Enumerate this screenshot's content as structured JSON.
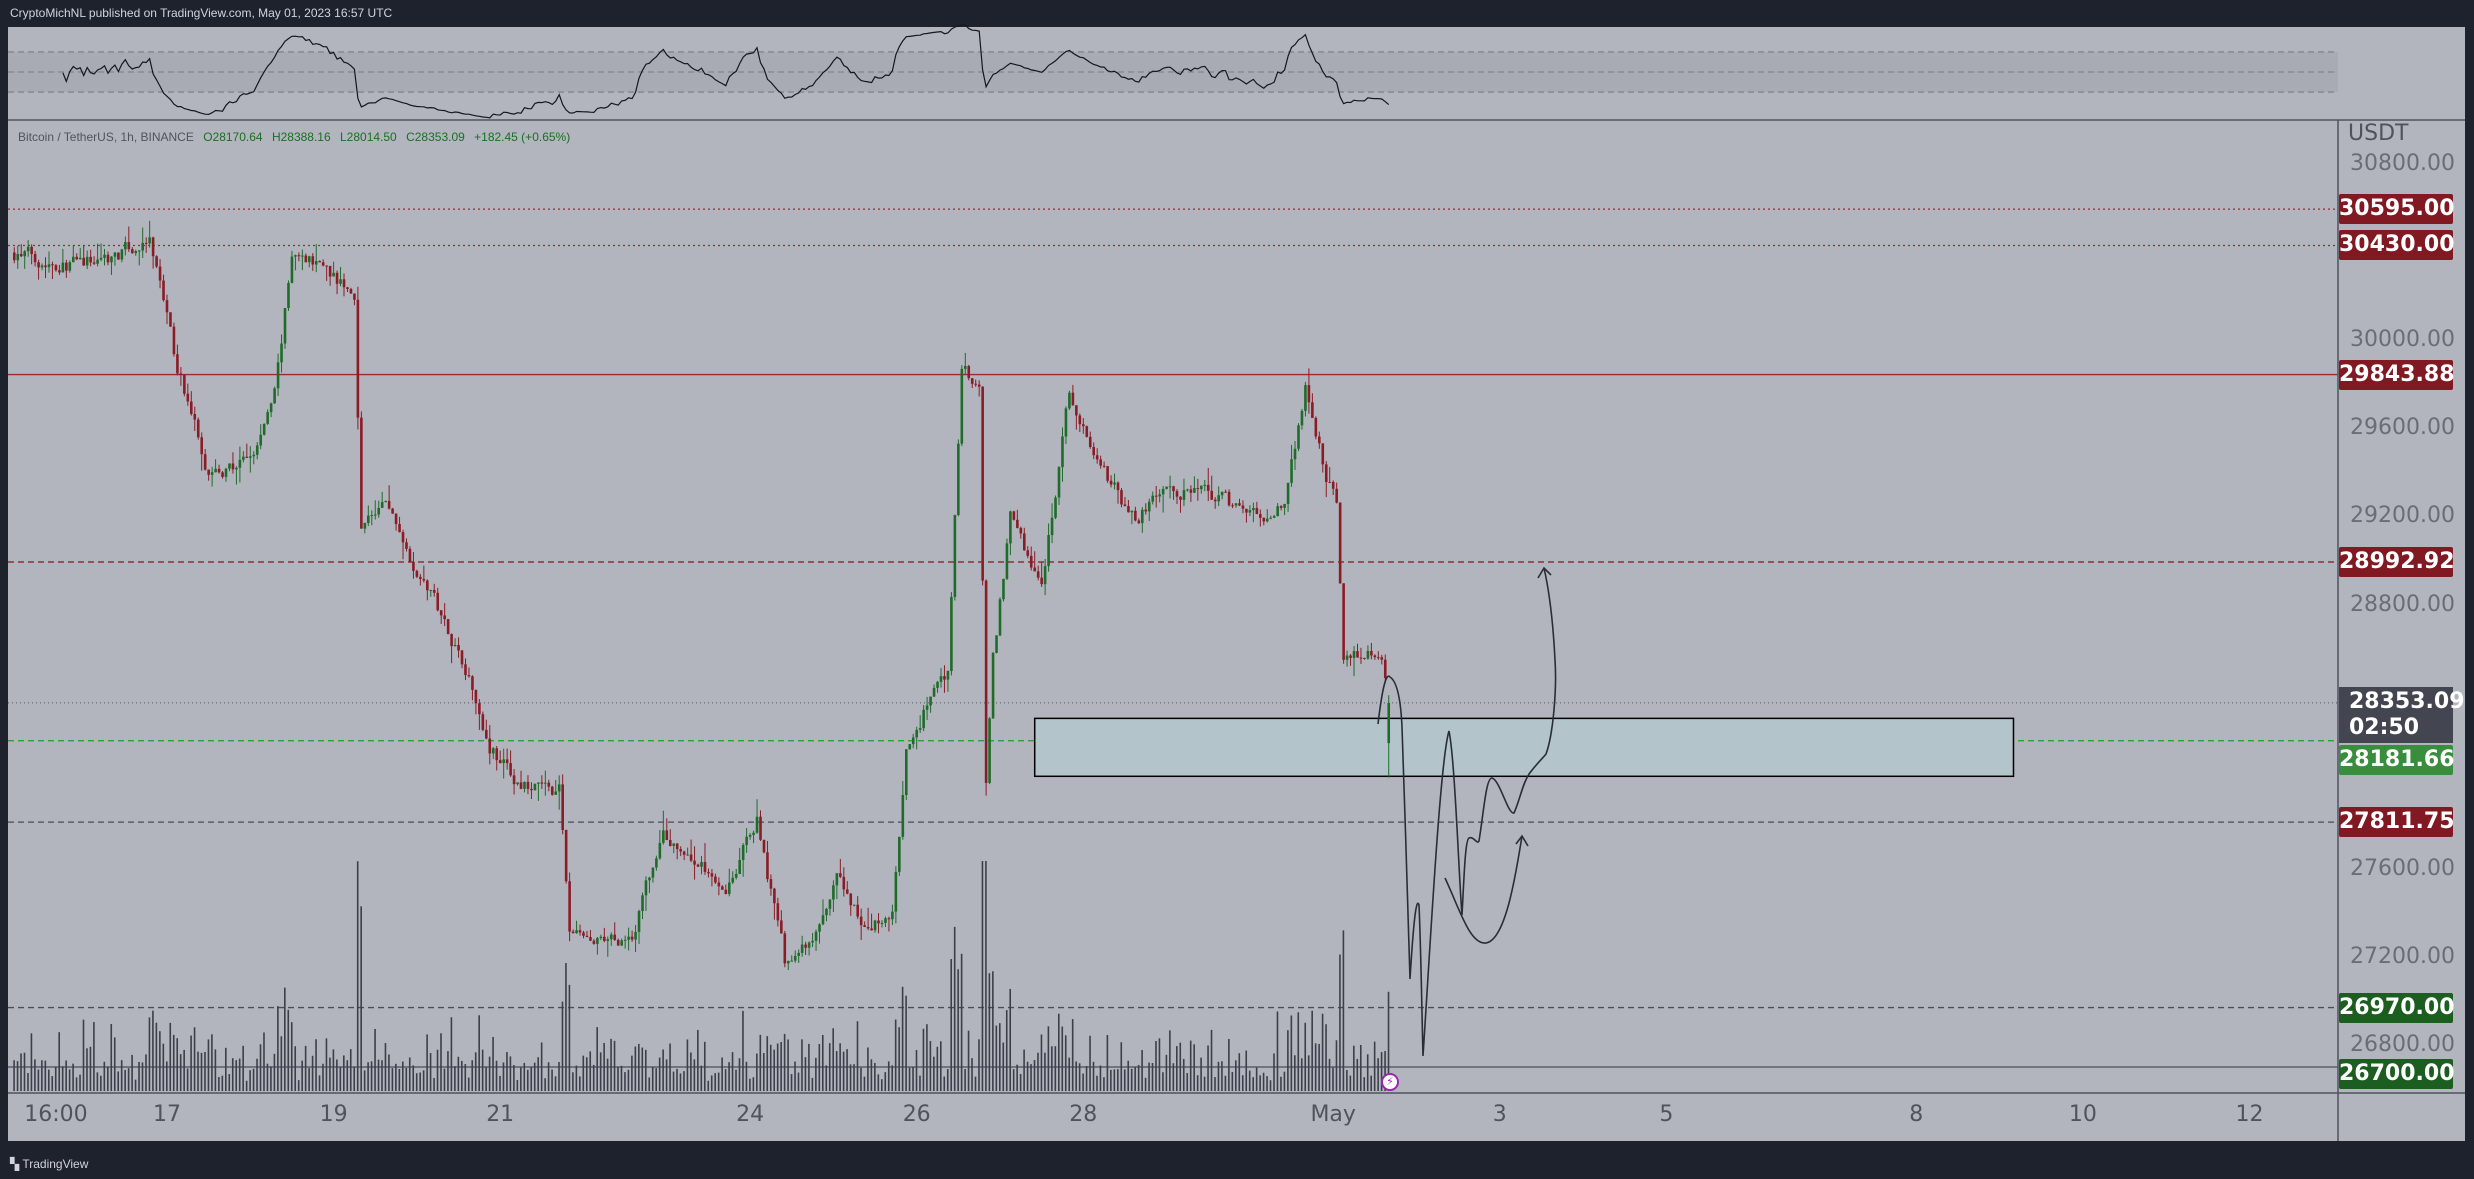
{
  "header": {
    "publisher": "CryptoMichNL published on TradingView.com, May 01, 2023 16:57 UTC"
  },
  "legend": {
    "symbol": "Bitcoin / TetherUS, 1h, BINANCE",
    "open": "O28170.64",
    "high": "H28388.16",
    "low": "L28014.50",
    "close": "C28353.09",
    "change": "+182.45 (+0.65%)"
  },
  "price_axis": {
    "currency": "USDT",
    "ticks": [
      "30800.00",
      "30000.00",
      "29600.00",
      "29200.00",
      "28800.00",
      "27600.00",
      "27200.00",
      "26800.00"
    ]
  },
  "levels": [
    {
      "price": "30595.00",
      "style": "dotted",
      "line_color": "#9b2a33",
      "label_color": "#801922"
    },
    {
      "price": "30430.00",
      "style": "dotted",
      "line_color": "#9b2a33",
      "label_color": "#801922"
    },
    {
      "price": "29843.88",
      "style": "solid",
      "line_color": "#9b2a33",
      "label_color": "#801922"
    },
    {
      "price": "28992.92",
      "style": "dashed",
      "line_color": "#801922",
      "label_color": "#801922"
    },
    {
      "price": "28181.66",
      "style": "dashed",
      "line_color": "#2e9e3a",
      "label_color": "#388e3c"
    },
    {
      "price": "27811.75",
      "style": "dashed",
      "line_color": "#4a4d58",
      "label_color": "#801922"
    },
    {
      "price": "26970.00",
      "style": "dashed",
      "line_color": "#4a4d58",
      "label_color": "#1b5e20"
    },
    {
      "price": "26700.00",
      "style": "solid",
      "line_color": "#4a4d58",
      "label_color": "#1b5e20"
    }
  ],
  "current_price": {
    "price": "28353.09",
    "countdown": "02:50"
  },
  "time_axis": {
    "labels": [
      {
        "text": "16:00",
        "date": "2023-04-15T16:00"
      },
      {
        "text": "17",
        "date": "2023-04-17T00:00"
      },
      {
        "text": "19",
        "date": "2023-04-19T00:00"
      },
      {
        "text": "21",
        "date": "2023-04-21T00:00"
      },
      {
        "text": "24",
        "date": "2023-04-24T00:00"
      },
      {
        "text": "26",
        "date": "2023-04-26T00:00"
      },
      {
        "text": "28",
        "date": "2023-04-28T00:00"
      },
      {
        "text": "May",
        "date": "2023-05-01T00:00"
      },
      {
        "text": "3",
        "date": "2023-05-03T00:00"
      },
      {
        "text": "5",
        "date": "2023-05-05T00:00"
      },
      {
        "text": "8",
        "date": "2023-05-08T00:00"
      },
      {
        "text": "10",
        "date": "2023-05-10T00:00"
      },
      {
        "text": "12",
        "date": "2023-05-12T00:00"
      }
    ]
  },
  "branding": {
    "logo": "TradingView"
  },
  "colors": {
    "up": "#1f6b2a",
    "down": "#8a1c26",
    "background": "#b2b5be",
    "frame": "#1e222d"
  },
  "chart_data": {
    "type": "candlestick",
    "interval": "1h",
    "ylim": [
      26560,
      30900
    ],
    "xlim": [
      "2023-04-15T03:00",
      "2023-05-13T12:00"
    ],
    "grid": false,
    "close_path": [
      [
        "2023-04-15T04:00",
        30398
      ],
      [
        "2023-04-15T23:00",
        30341
      ],
      [
        "2023-04-16T19:00",
        30434
      ],
      [
        "2023-04-16T23:00",
        30183
      ],
      [
        "2023-04-17T02:00",
        29932
      ],
      [
        "2023-04-17T11:00",
        29467
      ],
      [
        "2023-04-17T16:00",
        29395
      ],
      [
        "2023-04-18T01:00",
        29467
      ],
      [
        "2023-04-18T07:00",
        29753
      ],
      [
        "2023-04-18T12:00",
        30362
      ],
      [
        "2023-04-18T21:00",
        30362
      ],
      [
        "2023-04-19T06:00",
        30183
      ],
      [
        "2023-04-19T08:00",
        29180
      ],
      [
        "2023-04-19T15:00",
        29252
      ],
      [
        "2023-04-19T22:00",
        29037
      ],
      [
        "2023-04-20T05:00",
        28822
      ],
      [
        "2023-04-20T14:00",
        28535
      ],
      [
        "2023-04-20T21:00",
        28177
      ],
      [
        "2023-04-21T06:00",
        27962
      ],
      [
        "2023-04-21T17:00",
        27962
      ],
      [
        "2023-04-21T20:00",
        27317
      ],
      [
        "2023-04-22T05:00",
        27245
      ],
      [
        "2023-04-22T14:00",
        27317
      ],
      [
        "2023-04-22T23:00",
        27747
      ],
      [
        "2023-04-23T08:00",
        27640
      ],
      [
        "2023-04-23T17:00",
        27532
      ],
      [
        "2023-04-24T02:00",
        27818
      ],
      [
        "2023-04-24T10:00",
        27174
      ],
      [
        "2023-04-24T18:00",
        27245
      ],
      [
        "2023-04-25T01:00",
        27532
      ],
      [
        "2023-04-25T10:00",
        27317
      ],
      [
        "2023-04-25T17:00",
        27389
      ],
      [
        "2023-04-25T21:00",
        28105
      ],
      [
        "2023-04-26T04:00",
        28392
      ],
      [
        "2023-04-26T09:00",
        28464
      ],
      [
        "2023-04-26T13:00",
        29897
      ],
      [
        "2023-04-26T18:00",
        29753
      ],
      [
        "2023-04-26T20:00",
        27962
      ],
      [
        "2023-04-26T22:00",
        28535
      ],
      [
        "2023-04-27T03:00",
        29180
      ],
      [
        "2023-04-27T12:00",
        28893
      ],
      [
        "2023-04-27T20:00",
        29753
      ],
      [
        "2023-04-28T06:00",
        29395
      ],
      [
        "2023-04-28T15:00",
        29180
      ],
      [
        "2023-04-29T00:00",
        29323
      ],
      [
        "2023-04-29T14:00",
        29288
      ],
      [
        "2023-04-30T04:00",
        29180
      ],
      [
        "2023-04-30T10:00",
        29252
      ],
      [
        "2023-04-30T16:00",
        29789
      ],
      [
        "2023-04-30T22:00",
        29395
      ],
      [
        "2023-05-01T01:00",
        29252
      ],
      [
        "2023-05-01T03:00",
        28535
      ],
      [
        "2023-05-01T09:00",
        28607
      ],
      [
        "2023-05-01T14:00",
        28535
      ],
      [
        "2023-05-01T16:00",
        28353.09
      ]
    ],
    "last_candle": {
      "open": 28170.64,
      "high": 28388.16,
      "low": 28014.5,
      "close": 28353.09
    },
    "zone": {
      "top": 28283,
      "bottom": 28020,
      "from": "2023-04-27T10:00",
      "to": "2023-05-09T04:00"
    },
    "rsi": {
      "levels": [
        70,
        50,
        30
      ],
      "range": [
        0,
        100
      ]
    }
  }
}
